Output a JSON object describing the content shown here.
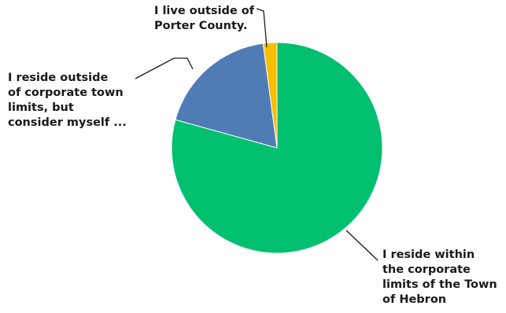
{
  "chart_data": {
    "type": "pie",
    "slices": [
      {
        "label_lines": [
          "I reside within",
          "the corporate",
          "limits of the Town",
          "of Hebron"
        ],
        "value": 79.3,
        "color": "#00bf6f"
      },
      {
        "label_lines": [
          "I reside outside",
          "of corporate town",
          "limits, but",
          "consider myself ..."
        ],
        "value": 18.6,
        "color": "#507cb6"
      },
      {
        "label_lines": [
          "I live outside of",
          "Porter County."
        ],
        "value": 2.1,
        "color": "#f9be00"
      }
    ],
    "start_angle": "12 o'clock",
    "direction": "clockwise",
    "legend": "none"
  }
}
